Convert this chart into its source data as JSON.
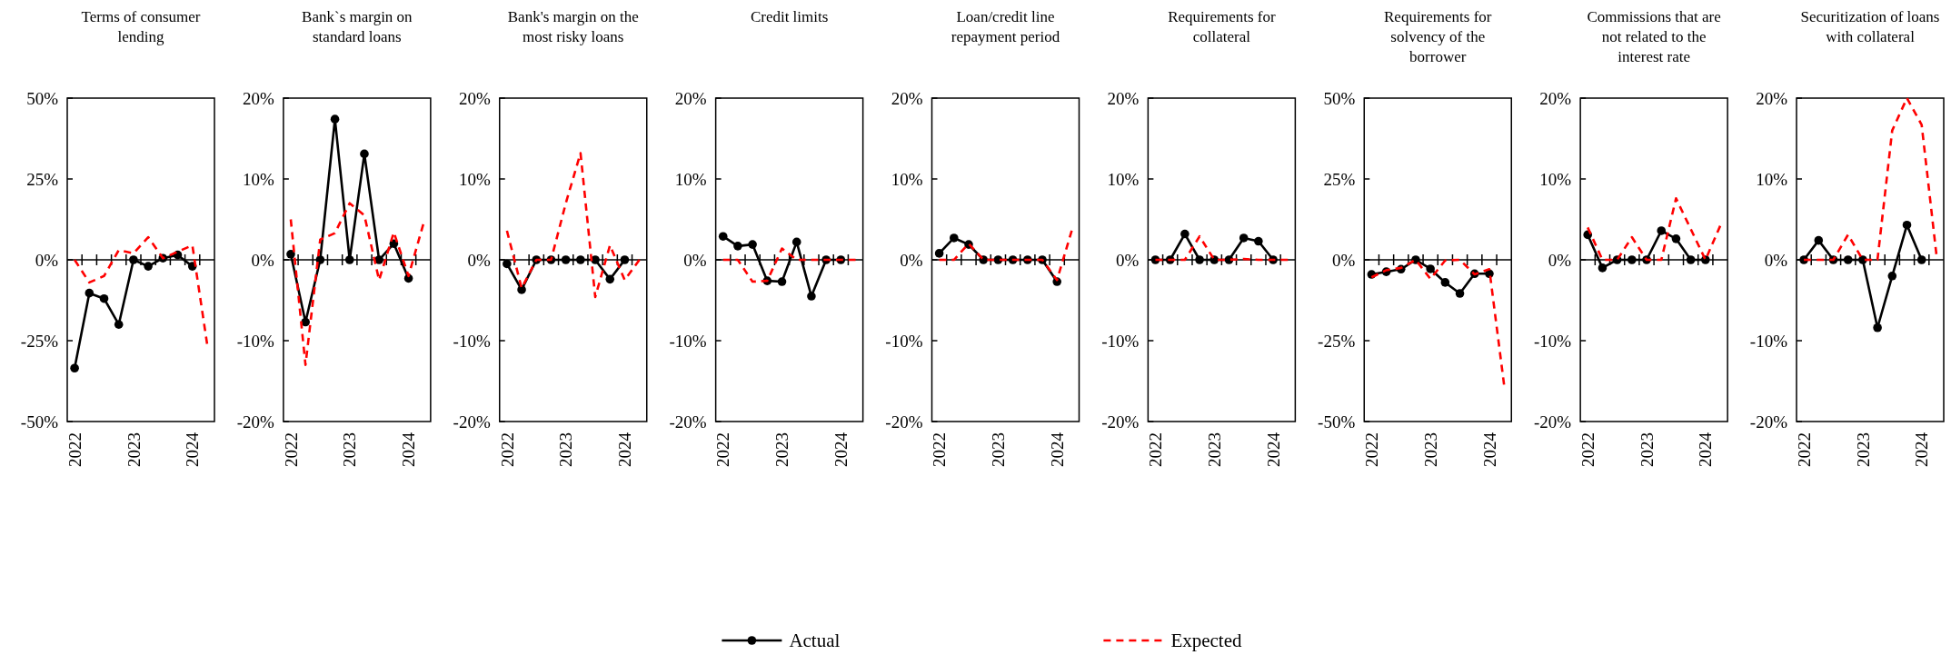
{
  "chart_data": [
    {
      "type": "line",
      "title": "Terms of consumer lending",
      "legend": "bottom",
      "categories": [
        "2022",
        null,
        null,
        null,
        "2023",
        null,
        null,
        null,
        "2024",
        null
      ],
      "ylim": [
        -50,
        50
      ],
      "yticks": [
        {
          "value": -50,
          "label": "-50%"
        },
        {
          "value": -25,
          "label": "-25%"
        },
        {
          "value": 0,
          "label": "0%"
        },
        {
          "value": 25,
          "label": "25%"
        },
        {
          "value": 50,
          "label": "50%"
        }
      ],
      "series": [
        {
          "name": "Actual",
          "color": "#000000",
          "marker": "circle",
          "line_style": "solid",
          "values": [
            -33.5,
            -10.3,
            -12,
            -20,
            0,
            -2,
            0.5,
            1.5,
            -2,
            null
          ]
        },
        {
          "name": "Expected",
          "color": "#ff0000",
          "marker": "none",
          "line_style": "dashed",
          "values": [
            0,
            -7,
            -5,
            3,
            2,
            7,
            0.5,
            2.5,
            4.5,
            -26
          ]
        }
      ]
    },
    {
      "type": "line",
      "title": "Bank`s margin on standard loans",
      "categories": [
        "2022",
        null,
        null,
        null,
        "2023",
        null,
        null,
        null,
        "2024",
        null
      ],
      "ylim": [
        -20,
        20
      ],
      "yticks": [
        {
          "value": -20,
          "label": "-20%"
        },
        {
          "value": -10,
          "label": "-10%"
        },
        {
          "value": 0,
          "label": "0%"
        },
        {
          "value": 10,
          "label": "10%"
        },
        {
          "value": 20,
          "label": "20%"
        }
      ],
      "series": [
        {
          "color": "#000000",
          "marker": "circle",
          "line_style": "solid",
          "values": [
            0.7,
            -7.7,
            0,
            17.4,
            0,
            13.1,
            0,
            2,
            -2.3,
            null
          ]
        },
        {
          "color": "#ff0000",
          "marker": "none",
          "line_style": "dashed",
          "values": [
            5,
            -13,
            2.5,
            3.3,
            7,
            5.5,
            -2.5,
            3.4,
            -2,
            4.4
          ]
        }
      ]
    },
    {
      "type": "line",
      "title": "Bank's margin on the most risky loans",
      "categories": [
        "2022",
        null,
        null,
        null,
        "2023",
        null,
        null,
        null,
        "2024",
        null
      ],
      "ylim": [
        -20,
        20
      ],
      "yticks": [
        {
          "value": -20,
          "label": "-20%"
        },
        {
          "value": -10,
          "label": "-10%"
        },
        {
          "value": 0,
          "label": "0%"
        },
        {
          "value": 10,
          "label": "10%"
        },
        {
          "value": 20,
          "label": "20%"
        }
      ],
      "series": [
        {
          "color": "#000000",
          "marker": "circle",
          "line_style": "solid",
          "values": [
            -0.5,
            -3.7,
            0,
            0,
            0,
            0,
            0,
            -2.4,
            0,
            null
          ]
        },
        {
          "color": "#ff0000",
          "marker": "none",
          "line_style": "dashed",
          "values": [
            3.6,
            -3.5,
            0,
            0,
            7,
            13.2,
            -4.6,
            1.8,
            -2.5,
            0
          ]
        }
      ]
    },
    {
      "type": "line",
      "title": "Credit limits",
      "categories": [
        "2022",
        null,
        null,
        null,
        "2023",
        null,
        null,
        null,
        "2024",
        null
      ],
      "ylim": [
        -20,
        20
      ],
      "yticks": [
        {
          "value": -20,
          "label": "-20%"
        },
        {
          "value": -10,
          "label": "-10%"
        },
        {
          "value": 0,
          "label": "0%"
        },
        {
          "value": 10,
          "label": "10%"
        },
        {
          "value": 20,
          "label": "20%"
        }
      ],
      "series": [
        {
          "color": "#000000",
          "marker": "circle",
          "line_style": "solid",
          "values": [
            2.9,
            1.7,
            1.9,
            -2.6,
            -2.7,
            2.2,
            -4.5,
            0,
            0,
            null
          ]
        },
        {
          "color": "#ff0000",
          "marker": "none",
          "line_style": "dashed",
          "values": [
            0,
            0,
            -2.7,
            -2.6,
            1.4,
            0,
            0,
            0,
            0,
            0
          ]
        }
      ]
    },
    {
      "type": "line",
      "title": "Loan/credit line repayment period",
      "categories": [
        "2022",
        null,
        null,
        null,
        "2023",
        null,
        null,
        null,
        "2024",
        null
      ],
      "ylim": [
        -20,
        20
      ],
      "yticks": [
        {
          "value": -20,
          "label": "-20%"
        },
        {
          "value": -10,
          "label": "-10%"
        },
        {
          "value": 0,
          "label": "0%"
        },
        {
          "value": 10,
          "label": "10%"
        },
        {
          "value": 20,
          "label": "20%"
        }
      ],
      "series": [
        {
          "color": "#000000",
          "marker": "circle",
          "line_style": "solid",
          "values": [
            0.8,
            2.7,
            1.9,
            0,
            0,
            0,
            0,
            0,
            -2.7,
            null
          ]
        },
        {
          "color": "#ff0000",
          "marker": "none",
          "line_style": "dashed",
          "values": [
            0,
            0,
            2,
            0,
            0,
            0,
            0,
            0,
            -2.5,
            3.6
          ]
        }
      ]
    },
    {
      "type": "line",
      "title": "Requirements for collateral",
      "categories": [
        "2022",
        null,
        null,
        null,
        "2023",
        null,
        null,
        null,
        "2024",
        null
      ],
      "ylim": [
        -20,
        20
      ],
      "yticks": [
        {
          "value": -20,
          "label": "-20%"
        },
        {
          "value": -10,
          "label": "-10%"
        },
        {
          "value": 0,
          "label": "0%"
        },
        {
          "value": 10,
          "label": "10%"
        },
        {
          "value": 20,
          "label": "20%"
        }
      ],
      "series": [
        {
          "color": "#000000",
          "marker": "circle",
          "line_style": "solid",
          "values": [
            0,
            0,
            3.2,
            0,
            0,
            0,
            2.7,
            2.3,
            0,
            null
          ]
        },
        {
          "color": "#ff0000",
          "marker": "none",
          "line_style": "dashed",
          "values": [
            0,
            0,
            0,
            2.9,
            0,
            0,
            0.1,
            0,
            0,
            0
          ]
        }
      ]
    },
    {
      "type": "line",
      "title": "Requirements for solvency of the borrower",
      "categories": [
        "2022",
        null,
        null,
        null,
        "2023",
        null,
        null,
        null,
        "2024",
        null
      ],
      "ylim": [
        -50,
        50
      ],
      "yticks": [
        {
          "value": -50,
          "label": "-50%"
        },
        {
          "value": -25,
          "label": "-25%"
        },
        {
          "value": 0,
          "label": "0%"
        },
        {
          "value": 25,
          "label": "25%"
        },
        {
          "value": 50,
          "label": "50%"
        }
      ],
      "series": [
        {
          "color": "#000000",
          "marker": "circle",
          "line_style": "solid",
          "values": [
            -4.5,
            -3.7,
            -2.9,
            0,
            -2.8,
            -7,
            -10.4,
            -4.3,
            -4.3,
            null
          ]
        },
        {
          "color": "#ff0000",
          "marker": "none",
          "line_style": "dashed",
          "values": [
            -5.4,
            -3.2,
            -2.5,
            0,
            -5.9,
            -0.2,
            0,
            -4.5,
            -2.9,
            -38.6
          ]
        }
      ]
    },
    {
      "type": "line",
      "title": "Commissions that are not related to the interest rate",
      "categories": [
        "2022",
        null,
        null,
        null,
        "2023",
        null,
        null,
        null,
        "2024",
        null
      ],
      "ylim": [
        -20,
        20
      ],
      "yticks": [
        {
          "value": -20,
          "label": "-20%"
        },
        {
          "value": -10,
          "label": "-10%"
        },
        {
          "value": 0,
          "label": "0%"
        },
        {
          "value": 10,
          "label": "10%"
        },
        {
          "value": 20,
          "label": "20%"
        }
      ],
      "series": [
        {
          "color": "#000000",
          "marker": "circle",
          "line_style": "solid",
          "values": [
            3.1,
            -1,
            0,
            0,
            0,
            3.6,
            2.6,
            0,
            0,
            null
          ]
        },
        {
          "color": "#ff0000",
          "marker": "none",
          "line_style": "dashed",
          "values": [
            4,
            0,
            0,
            2.8,
            0,
            0,
            7.6,
            3.8,
            0,
            4.2
          ]
        }
      ]
    },
    {
      "type": "line",
      "title": "Securitization of loans with collateral",
      "categories": [
        "2022",
        null,
        null,
        null,
        "2023",
        null,
        null,
        null,
        "2024",
        null
      ],
      "ylim": [
        -20,
        20
      ],
      "yticks": [
        {
          "value": -20,
          "label": "-20%"
        },
        {
          "value": -10,
          "label": "-10%"
        },
        {
          "value": 0,
          "label": "0%"
        },
        {
          "value": 10,
          "label": "10%"
        },
        {
          "value": 20,
          "label": "20%"
        }
      ],
      "series": [
        {
          "color": "#000000",
          "marker": "circle",
          "line_style": "solid",
          "values": [
            0,
            2.4,
            0,
            0,
            0,
            -8.4,
            -2,
            4.3,
            0,
            null
          ]
        },
        {
          "color": "#ff0000",
          "marker": "none",
          "line_style": "dashed",
          "values": [
            0,
            0,
            0,
            3.1,
            0,
            0,
            16,
            20,
            16.7,
            0.7
          ]
        }
      ]
    }
  ]
}
